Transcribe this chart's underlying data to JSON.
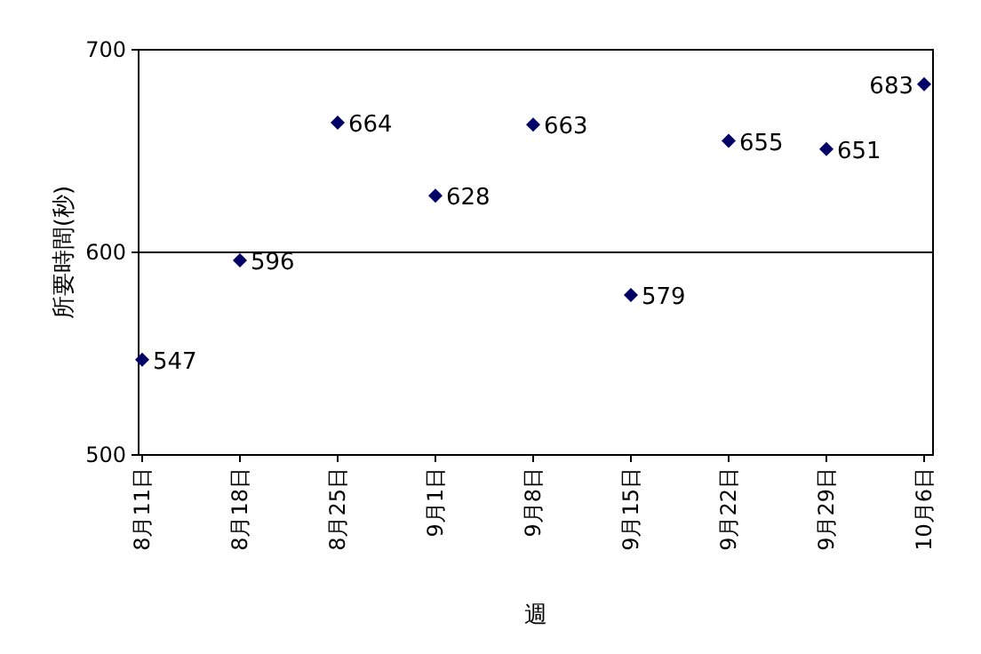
{
  "chart_data": {
    "type": "scatter",
    "xlabel": "週",
    "ylabel": "所要時間(秒)",
    "categories": [
      "8月11日",
      "8月18日",
      "8月25日",
      "9月1日",
      "9月8日",
      "9月15日",
      "9月22日",
      "9月29日",
      "10月6日"
    ],
    "series": [
      {
        "color": "#000066",
        "values": [
          547,
          596,
          664,
          628,
          663,
          579,
          655,
          651,
          683
        ]
      }
    ],
    "ylim": [
      500,
      700
    ],
    "yticks": [
      500,
      600,
      700
    ],
    "grid": "y",
    "marker": "diamond",
    "data_labels": true
  }
}
